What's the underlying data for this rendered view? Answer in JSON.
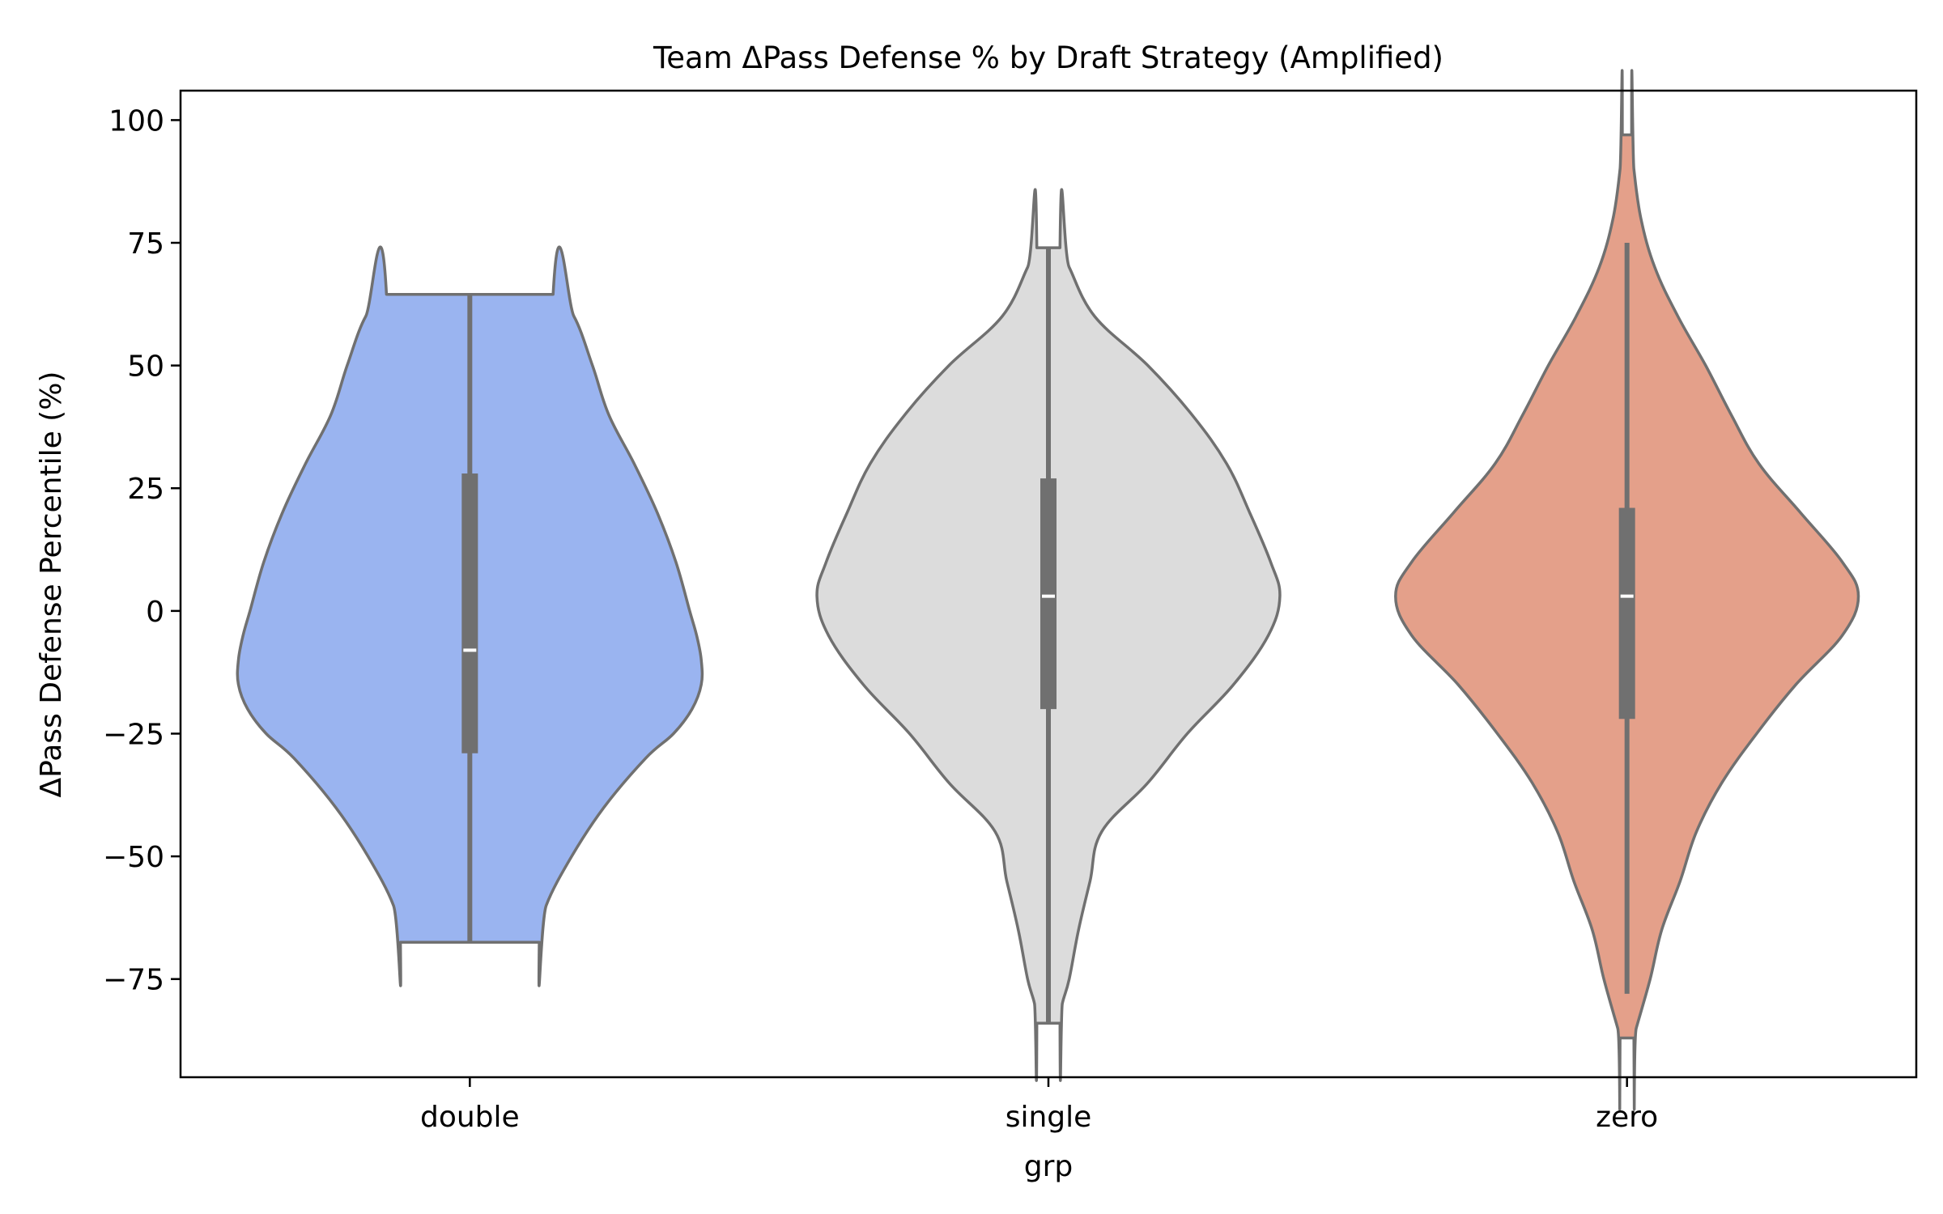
{
  "chart_data": {
    "type": "violin",
    "title": "Team ΔPass Defense % by Draft Strategy (Amplified)",
    "xlabel": "grp",
    "ylabel": "ΔPass Defense Percentile (%)",
    "ylim": [
      -95,
      106
    ],
    "yticks": [
      100,
      75,
      50,
      25,
      0,
      -25,
      -50,
      -75
    ],
    "ytick_labels": [
      "100",
      "75",
      "50",
      "25",
      "0",
      "−25",
      "−50",
      "−75"
    ],
    "categories": [
      "double",
      "single",
      "zero"
    ],
    "grid": false,
    "legend": "none",
    "colors": {
      "double": "#9ab4f0",
      "single": "#dcdcdc",
      "zero": "#e4a08a",
      "outline": "#707070",
      "box": "#707070",
      "median": "#ffffff"
    },
    "series": [
      {
        "category": "double",
        "min": -67.5,
        "q1": -29,
        "median": -8,
        "q3": 28,
        "max": 64.5,
        "density": [
          [
            64.5,
            0.36
          ],
          [
            60,
            0.45
          ],
          [
            50,
            0.53
          ],
          [
            40,
            0.6
          ],
          [
            30,
            0.71
          ],
          [
            20,
            0.81
          ],
          [
            10,
            0.89
          ],
          [
            0,
            0.95
          ],
          [
            -5,
            0.98
          ],
          [
            -10,
            1.0
          ],
          [
            -15,
            1.0
          ],
          [
            -20,
            0.96
          ],
          [
            -25,
            0.88
          ],
          [
            -30,
            0.76
          ],
          [
            -40,
            0.58
          ],
          [
            -50,
            0.44
          ],
          [
            -60,
            0.33
          ],
          [
            -67.5,
            0.3
          ]
        ]
      },
      {
        "category": "single",
        "min": -84,
        "q1": -20,
        "median": 3,
        "q3": 27,
        "max": 74,
        "density": [
          [
            74,
            0.05
          ],
          [
            70,
            0.09
          ],
          [
            60,
            0.2
          ],
          [
            50,
            0.43
          ],
          [
            40,
            0.62
          ],
          [
            30,
            0.77
          ],
          [
            20,
            0.87
          ],
          [
            10,
            0.96
          ],
          [
            3,
            1.0
          ],
          [
            -5,
            0.95
          ],
          [
            -15,
            0.8
          ],
          [
            -25,
            0.6
          ],
          [
            -35,
            0.43
          ],
          [
            -45,
            0.23
          ],
          [
            -55,
            0.18
          ],
          [
            -65,
            0.13
          ],
          [
            -75,
            0.09
          ],
          [
            -80,
            0.06
          ],
          [
            -84,
            0.05
          ]
        ]
      },
      {
        "category": "zero",
        "min": -78,
        "q1": -22,
        "median": 3,
        "q3": 21,
        "max": 75,
        "density": [
          [
            97,
            0.02
          ],
          [
            90,
            0.03
          ],
          [
            80,
            0.06
          ],
          [
            70,
            0.12
          ],
          [
            60,
            0.22
          ],
          [
            50,
            0.34
          ],
          [
            40,
            0.45
          ],
          [
            30,
            0.57
          ],
          [
            20,
            0.75
          ],
          [
            10,
            0.93
          ],
          [
            3,
            1.0
          ],
          [
            -5,
            0.93
          ],
          [
            -15,
            0.73
          ],
          [
            -25,
            0.56
          ],
          [
            -35,
            0.41
          ],
          [
            -45,
            0.3
          ],
          [
            -55,
            0.23
          ],
          [
            -65,
            0.15
          ],
          [
            -75,
            0.1
          ],
          [
            -85,
            0.04
          ],
          [
            -87,
            0.03
          ]
        ]
      }
    ]
  }
}
